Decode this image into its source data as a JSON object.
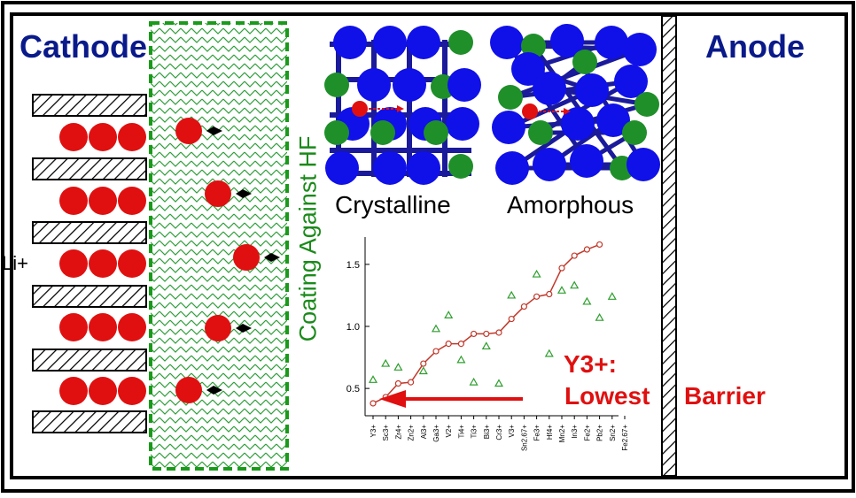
{
  "labels": {
    "cathode": "Cathode",
    "anode": "Anode",
    "coating": "Coating Against HF",
    "crystalline": "Crystalline",
    "amorphous": "Amorphous",
    "li_ion": "Li+",
    "callout_line1": "Y3+:",
    "callout_word1": "Lowest",
    "callout_word2": "Barrier"
  },
  "colors": {
    "title_blue": "#0a1a8a",
    "coating_green": "#1a8a1a",
    "ion_red": "#e01010",
    "atom_blue": "#1010e8",
    "atom_green": "#1f8f2a",
    "line_color": "#c0392b",
    "triangle_color": "#2e9e2e"
  },
  "chart_data": {
    "type": "line",
    "categories": [
      "Y3+",
      "Sc3+",
      "Zr4+",
      "Zn2+",
      "Al3+",
      "Ga3+",
      "V2+",
      "Ti4+",
      "Ti3+",
      "Bi3+",
      "Cr3+",
      "V3+",
      "Sn2.67+",
      "Fe3+",
      "Hf4+",
      "Mn2+",
      "In3+",
      "Fe2+",
      "Pb2+",
      "Sn2+",
      "Fe2.67+"
    ],
    "series": [
      {
        "marker": "circle",
        "values": [
          0.38,
          0.43,
          0.54,
          0.55,
          0.7,
          0.8,
          0.86,
          0.86,
          0.94,
          0.94,
          0.95,
          1.06,
          1.16,
          1.24,
          1.26,
          1.47,
          1.57,
          1.62,
          1.66,
          null,
          null
        ]
      },
      {
        "marker": "triangle",
        "values": [
          0.57,
          0.7,
          0.67,
          null,
          0.64,
          0.98,
          1.09,
          0.73,
          0.55,
          0.84,
          0.54,
          1.25,
          null,
          1.42,
          0.78,
          1.29,
          1.33,
          1.2,
          1.07,
          1.24,
          null
        ]
      }
    ],
    "yticks": [
      0.5,
      1.0,
      1.5
    ],
    "ylim": [
      0.28,
      1.72
    ],
    "grid": false
  }
}
